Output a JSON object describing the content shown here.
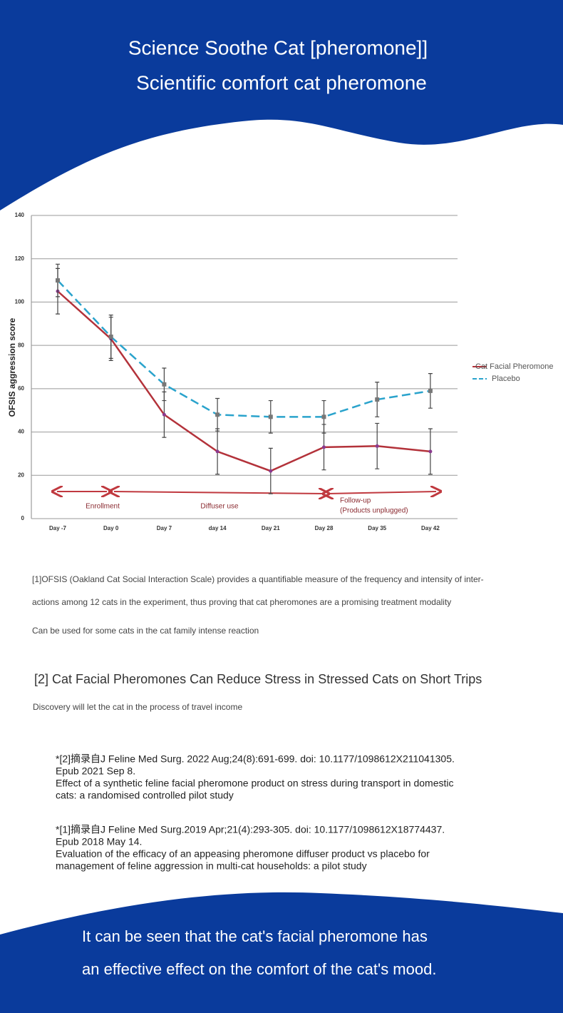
{
  "header": {
    "title": "Science Soothe Cat [pheromone]]",
    "subtitle": "Scientific comfort cat pheromone"
  },
  "chart_data": {
    "type": "line",
    "y_label": "OFSIS aggression score",
    "categories": [
      "Day -7",
      "Day 0",
      "Day 7",
      "day 14",
      "Day 21",
      "Day 28",
      "Day 35",
      "Day 42"
    ],
    "series": [
      {
        "name": "Cat Facial Pheromone",
        "color": "#b3323a",
        "dashed": false,
        "values": [
          105,
          83,
          48,
          31,
          22,
          33,
          33.5,
          31
        ],
        "errors": [
          10.5,
          10,
          10.5,
          10.5,
          10.5,
          10.5,
          10.5,
          10.5
        ]
      },
      {
        "name": "Placebo",
        "color": "#2aa3cc",
        "dashed": true,
        "values": [
          110,
          84,
          62,
          48,
          47,
          47,
          55,
          59
        ],
        "errors": [
          7.5,
          10,
          7.5,
          7.5,
          7.5,
          7.5,
          8,
          8
        ]
      }
    ],
    "ylim": [
      0,
      140
    ],
    "yticks": [
      0,
      20,
      40,
      60,
      80,
      100,
      120,
      140
    ],
    "grid": true,
    "legend": "right",
    "annotations": [
      "Enrollment",
      "Diffuser use",
      "Follow-up",
      "(Products unplugged)"
    ]
  },
  "notes": {
    "paragraph_lines": [
      "[1]OFSIS (Oakland Cat Social Interaction Scale) provides a quantifiable measure of the frequency and intensity of inter-",
      "actions among 12 cats in the experiment, thus proving that cat pheromones are a promising treatment modality"
    ],
    "usage": "Can be used for some cats in the cat family intense reaction",
    "heading": "[2] Cat Facial Pheromones Can Reduce Stress in Stressed Cats on Short Trips",
    "discovery": "Discovery will let the cat in the process of travel income"
  },
  "references": [
    [
      "*[2]摘录自J Feline Med Surg. 2022 Aug;24(8):691-699. doi: 10.1177/1098612X211041305.",
      "Epub 2021 Sep 8.",
      "Effect of a synthetic feline facial pheromone product on stress during transport in domestic",
      "cats: a randomised controlled pilot study"
    ],
    [
      "*[1]摘录自J Feline Med Surg.2019 Apr;21(4):293-305. doi: 10.1177/1098612X18774437.",
      "Epub 2018 May 14.",
      "Evaluation of the efficacy of an appeasing pheromone diffuser product vs placebo for",
      "management of feline aggression in multi-cat households: a pilot study"
    ]
  ],
  "footer": {
    "lines": [
      "It can be seen that the cat's facial pheromone has",
      "an effective effect on the comfort of the cat's mood."
    ]
  }
}
